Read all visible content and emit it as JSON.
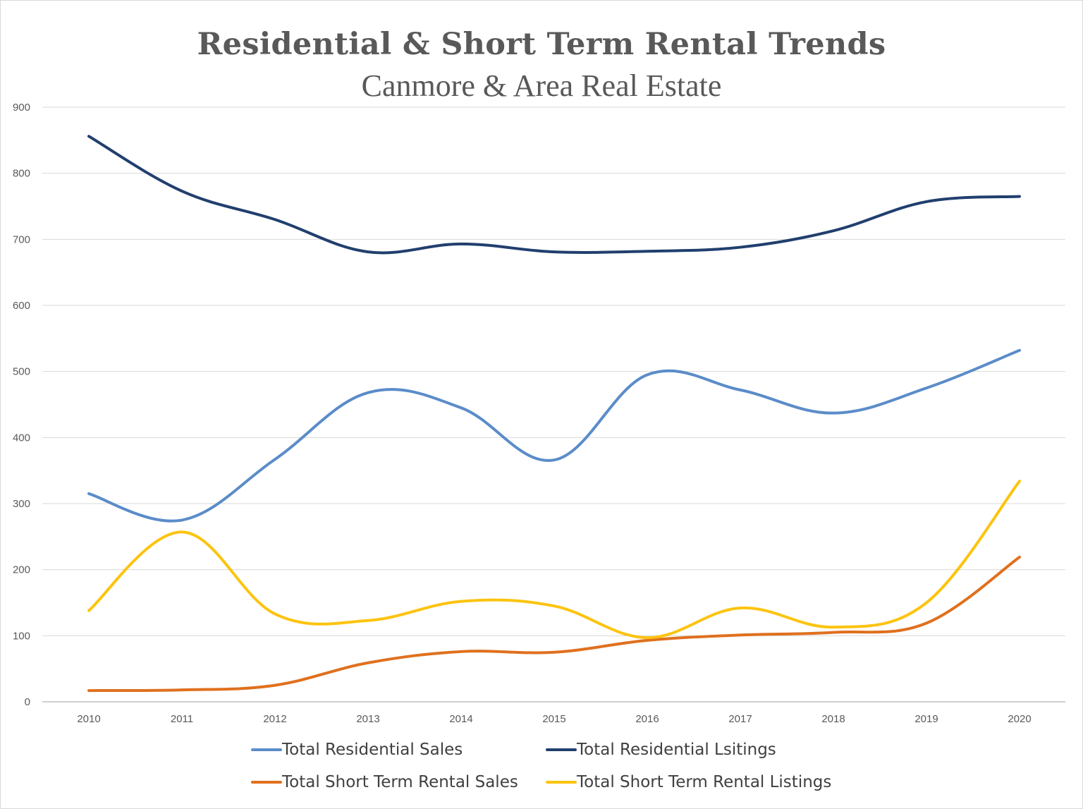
{
  "chart_data": {
    "type": "line",
    "title": "Residential & Short Term Rental Trends",
    "subtitle": "Canmore & Area Real Estate",
    "xlabel": "",
    "ylabel": "",
    "categories": [
      "2010",
      "2011",
      "2012",
      "2013",
      "2014",
      "2015",
      "2016",
      "2017",
      "2018",
      "2019",
      "2020"
    ],
    "y_ticks": [
      "0",
      "100",
      "200",
      "300",
      "400",
      "500",
      "600",
      "700",
      "800",
      "900"
    ],
    "ylim": [
      0,
      900
    ],
    "grid": true,
    "legend_position": "bottom",
    "series": [
      {
        "name": "Total Residential Sales",
        "color": "#5b8cc9",
        "values": [
          315,
          275,
          367,
          468,
          445,
          366,
          495,
          472,
          437,
          475,
          532
        ]
      },
      {
        "name": "Total Residential Lsitings",
        "color": "#213f6e",
        "values": [
          856,
          773,
          730,
          681,
          693,
          681,
          682,
          688,
          713,
          757,
          765
        ]
      },
      {
        "name": "Total Short Term Rental Sales",
        "color": "#e0701e",
        "values": [
          17,
          18,
          25,
          59,
          76,
          75,
          93,
          101,
          105,
          119,
          219
        ]
      },
      {
        "name": "Total Short Term Rental Listings",
        "color": "#fcc410",
        "values": [
          138,
          257,
          133,
          123,
          152,
          145,
          97,
          142,
          113,
          150,
          334
        ]
      }
    ]
  }
}
